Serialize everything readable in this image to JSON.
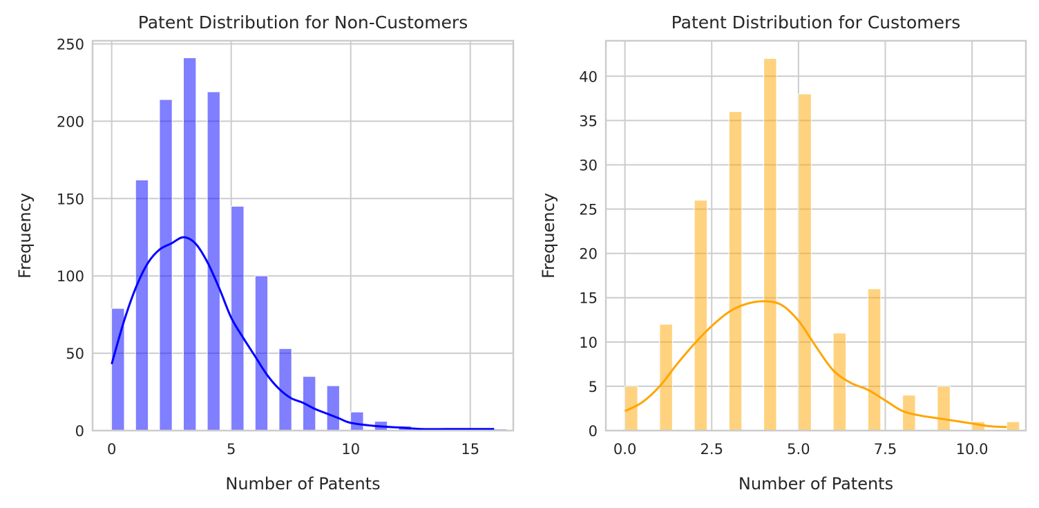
{
  "chart_data": [
    {
      "type": "bar",
      "title": "Patent Distribution for Non-Customers",
      "xlabel": "Number of Patents",
      "ylabel": "Frequency",
      "xlim": [
        -0.8,
        16.8
      ],
      "ylim": [
        0,
        252
      ],
      "xticks": [
        0,
        5,
        10,
        15
      ],
      "xtick_labels": [
        "0",
        "5",
        "10",
        "15"
      ],
      "yticks": [
        0,
        50,
        100,
        150,
        200,
        250
      ],
      "ytick_labels": [
        "0",
        "50",
        "100",
        "150",
        "200",
        "250"
      ],
      "grid": true,
      "color": "#0000ff",
      "bin_width": 0.53,
      "bars": [
        {
          "x": 0,
          "value": 79
        },
        {
          "x": 1,
          "value": 162
        },
        {
          "x": 2,
          "value": 214
        },
        {
          "x": 3,
          "value": 241
        },
        {
          "x": 4,
          "value": 219
        },
        {
          "x": 5,
          "value": 145
        },
        {
          "x": 6,
          "value": 100
        },
        {
          "x": 7,
          "value": 53
        },
        {
          "x": 8,
          "value": 35
        },
        {
          "x": 9,
          "value": 29
        },
        {
          "x": 10,
          "value": 12
        },
        {
          "x": 11,
          "value": 6
        },
        {
          "x": 12,
          "value": 3
        },
        {
          "x": 16,
          "value": 1
        }
      ],
      "kde": {
        "x": [
          0,
          0.5,
          1,
          1.5,
          2,
          2.5,
          3,
          3.5,
          4,
          4.5,
          5,
          5.5,
          6,
          6.5,
          7,
          7.5,
          8,
          8.5,
          9,
          9.5,
          10,
          11,
          12,
          13,
          14,
          15,
          16
        ],
        "y": [
          43,
          70,
          92,
          108,
          117,
          121,
          125,
          121,
          109,
          92,
          73,
          60,
          48,
          36,
          27,
          21,
          18,
          14,
          11,
          8,
          5,
          3,
          2,
          1,
          1,
          1,
          1
        ]
      }
    },
    {
      "type": "bar",
      "title": "Patent Distribution for Customers",
      "xlabel": "Number of Patents",
      "ylabel": "Frequency",
      "xlim": [
        -0.55,
        11.55
      ],
      "ylim": [
        0,
        44
      ],
      "xticks": [
        0,
        2.5,
        5,
        7.5,
        10
      ],
      "xtick_labels": [
        "0.0",
        "2.5",
        "5.0",
        "7.5",
        "10.0"
      ],
      "yticks": [
        0,
        5,
        10,
        15,
        20,
        25,
        30,
        35,
        40
      ],
      "ytick_labels": [
        "0",
        "5",
        "10",
        "15",
        "20",
        "25",
        "30",
        "35",
        "40"
      ],
      "grid": true,
      "color": "#ffa500",
      "bin_width": 0.367,
      "bars": [
        {
          "x": 0,
          "value": 5
        },
        {
          "x": 1,
          "value": 12
        },
        {
          "x": 2,
          "value": 26
        },
        {
          "x": 3,
          "value": 36
        },
        {
          "x": 4,
          "value": 42
        },
        {
          "x": 5,
          "value": 38
        },
        {
          "x": 6,
          "value": 11
        },
        {
          "x": 7,
          "value": 16
        },
        {
          "x": 8,
          "value": 4
        },
        {
          "x": 9,
          "value": 5
        },
        {
          "x": 10,
          "value": 1
        },
        {
          "x": 11,
          "value": 1
        }
      ],
      "kde": {
        "x": [
          0,
          0.5,
          1,
          1.5,
          2,
          2.5,
          3,
          3.5,
          4,
          4.5,
          5,
          5.5,
          6,
          6.5,
          7,
          7.5,
          8,
          8.5,
          9,
          9.5,
          10,
          10.5,
          11
        ],
        "y": [
          2.2,
          3.2,
          5.0,
          7.5,
          9.8,
          11.8,
          13.4,
          14.3,
          14.6,
          14.2,
          12.4,
          9.5,
          6.8,
          5.4,
          4.6,
          3.4,
          2.2,
          1.7,
          1.4,
          1.1,
          0.8,
          0.5,
          0.4
        ]
      }
    }
  ]
}
